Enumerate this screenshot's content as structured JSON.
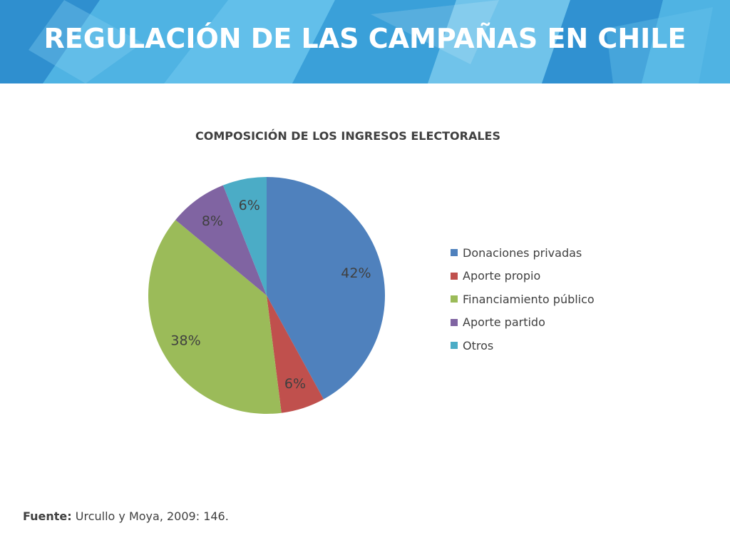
{
  "slide": {
    "title": "REGULACIÓN DE LAS CAMPAÑAS EN CHILE",
    "header_colors": [
      "#2f8fcf",
      "#4fb3e3",
      "#69c4ec",
      "#3aa0d9",
      "#86d0f0"
    ]
  },
  "chart_data": {
    "type": "pie",
    "title": "COMPOSICIÓN DE LOS INGRESOS ELECTORALES",
    "categories": [
      "Donaciones privadas",
      "Aporte propio",
      "Financiamiento público",
      "Aporte partido",
      "Otros"
    ],
    "values": [
      42,
      6,
      38,
      8,
      6
    ],
    "data_labels": [
      "42%",
      "6%",
      "38%",
      "8%",
      "6%"
    ],
    "colors": [
      "#4f81bd",
      "#c0504d",
      "#9bbb59",
      "#8064a2",
      "#4bacc6"
    ],
    "legend_position": "right",
    "start_angle": "12 o'clock",
    "direction": "clockwise"
  },
  "source": {
    "label": "Fuente:",
    "text": " Urcullo y Moya, 2009: 146."
  }
}
